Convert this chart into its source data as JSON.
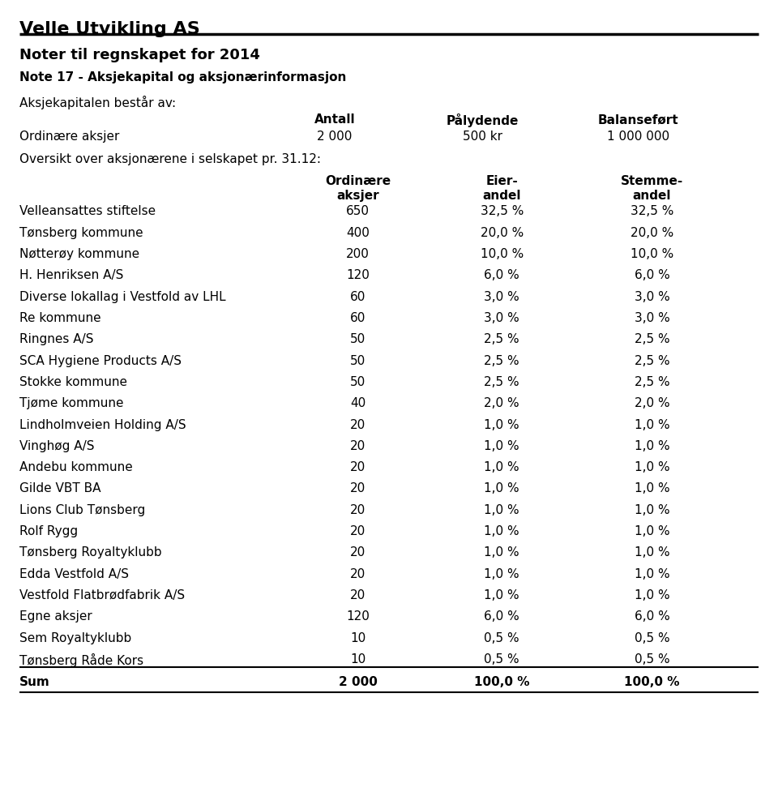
{
  "title": "Velle Utvikling AS",
  "subtitle1": "Noter til regnskapet for 2014",
  "subtitle2": "Note 17 - Aksjekapital og aksjonærinformasjon",
  "subtitle3": "Aksjekapitalen består av:",
  "cap_headers": [
    "Antall",
    "Pålydende",
    "Balanseført"
  ],
  "cap_row_label": "Ordinære aksjer",
  "cap_row_values": [
    "2 000",
    "500 kr",
    "1 000 000"
  ],
  "overview_text": "Oversikt over aksjonærene i selskapet pr. 31.12:",
  "rows": [
    [
      "Velleansattes stiftelse",
      "650",
      "32,5 %",
      "32,5 %"
    ],
    [
      "Tønsberg kommune",
      "400",
      "20,0 %",
      "20,0 %"
    ],
    [
      "Nøtterøy kommune",
      "200",
      "10,0 %",
      "10,0 %"
    ],
    [
      "H. Henriksen A/S",
      "120",
      "6,0 %",
      "6,0 %"
    ],
    [
      "Diverse lokallag i Vestfold av LHL",
      "60",
      "3,0 %",
      "3,0 %"
    ],
    [
      "Re kommune",
      "60",
      "3,0 %",
      "3,0 %"
    ],
    [
      "Ringnes A/S",
      "50",
      "2,5 %",
      "2,5 %"
    ],
    [
      "SCA Hygiene Products A/S",
      "50",
      "2,5 %",
      "2,5 %"
    ],
    [
      "Stokke kommune",
      "50",
      "2,5 %",
      "2,5 %"
    ],
    [
      "Tjøme kommune",
      "40",
      "2,0 %",
      "2,0 %"
    ],
    [
      "Lindholmveien Holding A/S",
      "20",
      "1,0 %",
      "1,0 %"
    ],
    [
      "Vinghøg A/S",
      "20",
      "1,0 %",
      "1,0 %"
    ],
    [
      "Andebu kommune",
      "20",
      "1,0 %",
      "1,0 %"
    ],
    [
      "Gilde VBT BA",
      "20",
      "1,0 %",
      "1,0 %"
    ],
    [
      "Lions Club Tønsberg",
      "20",
      "1,0 %",
      "1,0 %"
    ],
    [
      "Rolf Rygg",
      "20",
      "1,0 %",
      "1,0 %"
    ],
    [
      "Tønsberg Royaltyklubb",
      "20",
      "1,0 %",
      "1,0 %"
    ],
    [
      "Edda Vestfold A/S",
      "20",
      "1,0 %",
      "1,0 %"
    ],
    [
      "Vestfold Flatbrødfabrik A/S",
      "20",
      "1,0 %",
      "1,0 %"
    ],
    [
      "Egne aksjer",
      "120",
      "6,0 %",
      "6,0 %"
    ],
    [
      "Sem Royaltyklubb",
      "10",
      "0,5 %",
      "0,5 %"
    ],
    [
      "Tønsberg Råde Kors",
      "10",
      "0,5 %",
      "0,5 %"
    ]
  ],
  "sum_row": [
    "Sum",
    "2 000",
    "100,0 %",
    "100,0 %"
  ],
  "bg_color": "#ffffff",
  "text_color": "#000000"
}
